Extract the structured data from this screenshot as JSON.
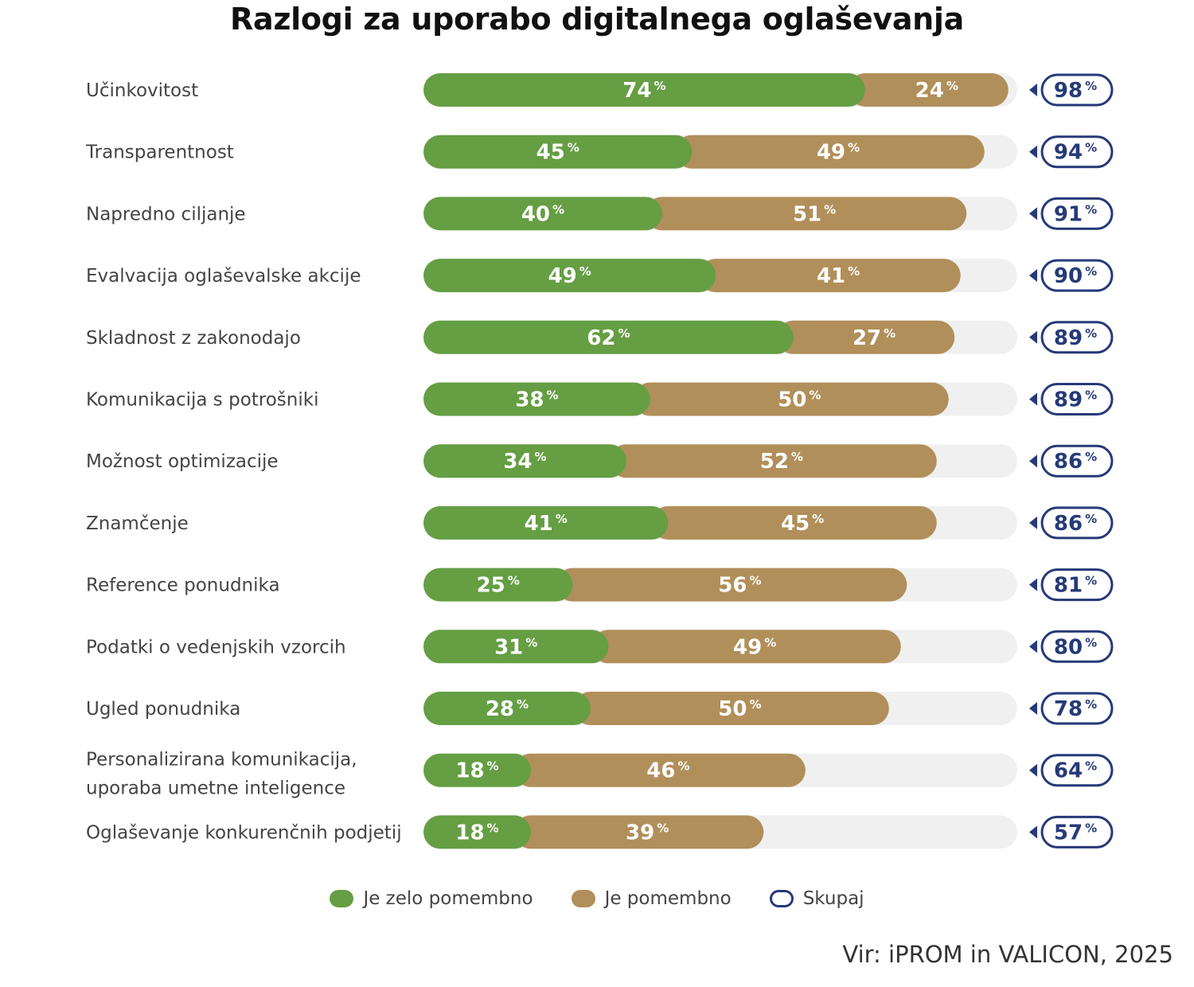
{
  "title": "Razlogi za uporabo digitalnega oglaševanja",
  "source": "Vir: iPROM in VALICON, 2025",
  "colors": {
    "very_important": "#659e43",
    "important": "#b18f5a",
    "track": "#f0f0f0",
    "total": "#263a78"
  },
  "chart_data": {
    "type": "bar",
    "orientation": "horizontal",
    "stacked": true,
    "value_unit": "%",
    "title": "Razlogi za uporabo digitalnega oglaševanja",
    "xlim": [
      0,
      100
    ],
    "grid": false,
    "legend_position": "bottom",
    "categories": [
      [
        "Učinkovitost"
      ],
      [
        "Transparentnost"
      ],
      [
        "Napredno ciljanje"
      ],
      [
        "Evalvacija oglaševalske akcije"
      ],
      [
        "Skladnost z zakonodajo"
      ],
      [
        "Komunikacija s potrošniki"
      ],
      [
        "Možnost optimizacije"
      ],
      [
        "Znamčenje"
      ],
      [
        "Reference ponudnika"
      ],
      [
        "Podatki o vedenjskih vzorcih"
      ],
      [
        "Ugled ponudnika"
      ],
      [
        "Personalizirana komunikacija,",
        "uporaba umetne inteligence"
      ],
      [
        "Oglaševanje konkurenčnih podjetij"
      ]
    ],
    "series": [
      {
        "name": "Je zelo pomembno",
        "values": [
          74,
          45,
          40,
          49,
          62,
          38,
          34,
          41,
          25,
          31,
          28,
          18,
          18
        ]
      },
      {
        "name": "Je pomembno",
        "values": [
          24,
          49,
          51,
          41,
          27,
          50,
          52,
          45,
          56,
          49,
          50,
          46,
          39
        ]
      }
    ],
    "totals": {
      "name": "Skupaj",
      "values": [
        98,
        94,
        91,
        90,
        89,
        89,
        86,
        86,
        81,
        80,
        78,
        64,
        57
      ]
    }
  }
}
